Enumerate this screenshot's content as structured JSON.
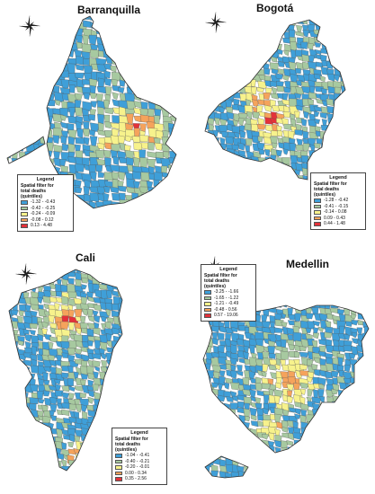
{
  "palette": {
    "q1": "#3f9fd8",
    "q2": "#a7c9a0",
    "q3": "#f7f28c",
    "q4": "#f5a35c",
    "q5": "#e3313a",
    "border": "#555555"
  },
  "maps": [
    {
      "id": "barranquilla",
      "title": "Barranquilla",
      "legend": {
        "title": "Legend",
        "subtitle": [
          "Spatial filter for",
          "total deaths",
          "(quintiles)"
        ],
        "classes": [
          "-1.32 - -0.43",
          "-0.42 - -0.25",
          "-0.24 - -0.09",
          "-0.08 - 0.12",
          "0.13 - 4.48"
        ]
      }
    },
    {
      "id": "bogota",
      "title": "Bogotá",
      "legend": {
        "title": "Legend",
        "subtitle": [
          "Spatial filter for",
          "total deaths",
          "(quintiles)"
        ],
        "classes": [
          "-1.28 - -0.42",
          "-0.41 - -0.15",
          "-0.14 - 0.08",
          "0.09 - 0.43",
          "0.44 - 1.48"
        ]
      }
    },
    {
      "id": "cali",
      "title": "Cali",
      "legend": {
        "title": "Legend",
        "subtitle": [
          "Spatial filter for",
          "total deaths",
          "(quintiles)"
        ],
        "classes": [
          "-1.04 - -0.41",
          "-0.40 - -0.21",
          "-0.20 - -0.01",
          "0.00 - 0.34",
          "0.35 - 2.56"
        ]
      }
    },
    {
      "id": "medellin",
      "title": "Medellin",
      "legend": {
        "title": "Legend",
        "subtitle": [
          "Spatial filter for",
          "total deaths",
          "(quintiles)"
        ],
        "classes": [
          "-3.25 - -1.66",
          "-1.65 - -1.22",
          "-1.21 - -0.49",
          "-0.48 - 0.56",
          "0.57 - 19.06"
        ]
      }
    }
  ]
}
